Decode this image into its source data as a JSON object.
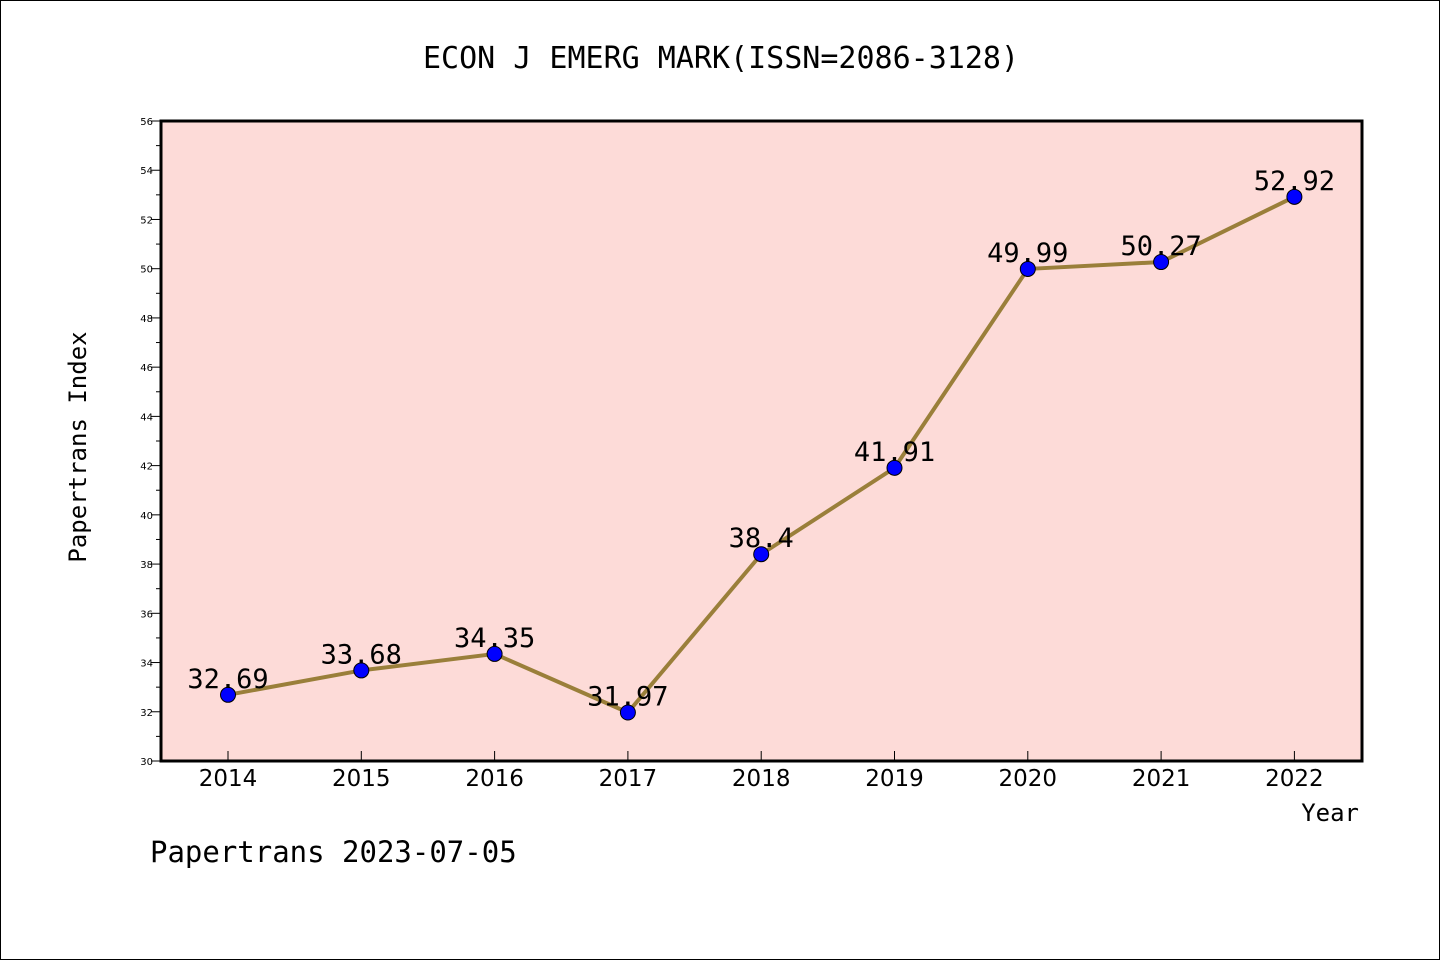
{
  "footer": "Papertrans 2023-07-05",
  "chart_data": {
    "type": "line",
    "title": "ECON J EMERG MARK(ISSN=2086-3128)",
    "xlabel": "Year",
    "ylabel": "Papertrans Index",
    "categories": [
      "2014",
      "2015",
      "2016",
      "2017",
      "2018",
      "2019",
      "2020",
      "2021",
      "2022"
    ],
    "series": [
      {
        "values": [
          32.69,
          33.68,
          34.35,
          31.97,
          38.4,
          41.91,
          49.99,
          50.27,
          52.92
        ],
        "labels": [
          "32.69",
          "33.68",
          "34.35",
          "31.97",
          "38.4",
          "41.91",
          "49.99",
          "50.27",
          "52.92"
        ]
      }
    ],
    "ylim": [
      30,
      56
    ],
    "yticks": [
      30,
      32,
      34,
      36,
      38,
      40,
      42,
      44,
      46,
      48,
      50,
      52,
      54,
      56
    ],
    "grid": false,
    "legend": "none",
    "colors": {
      "plot_background": "#FDDBD8",
      "line": "#9A7F3A",
      "marker": "#0000FF",
      "axis": "#000000"
    }
  }
}
